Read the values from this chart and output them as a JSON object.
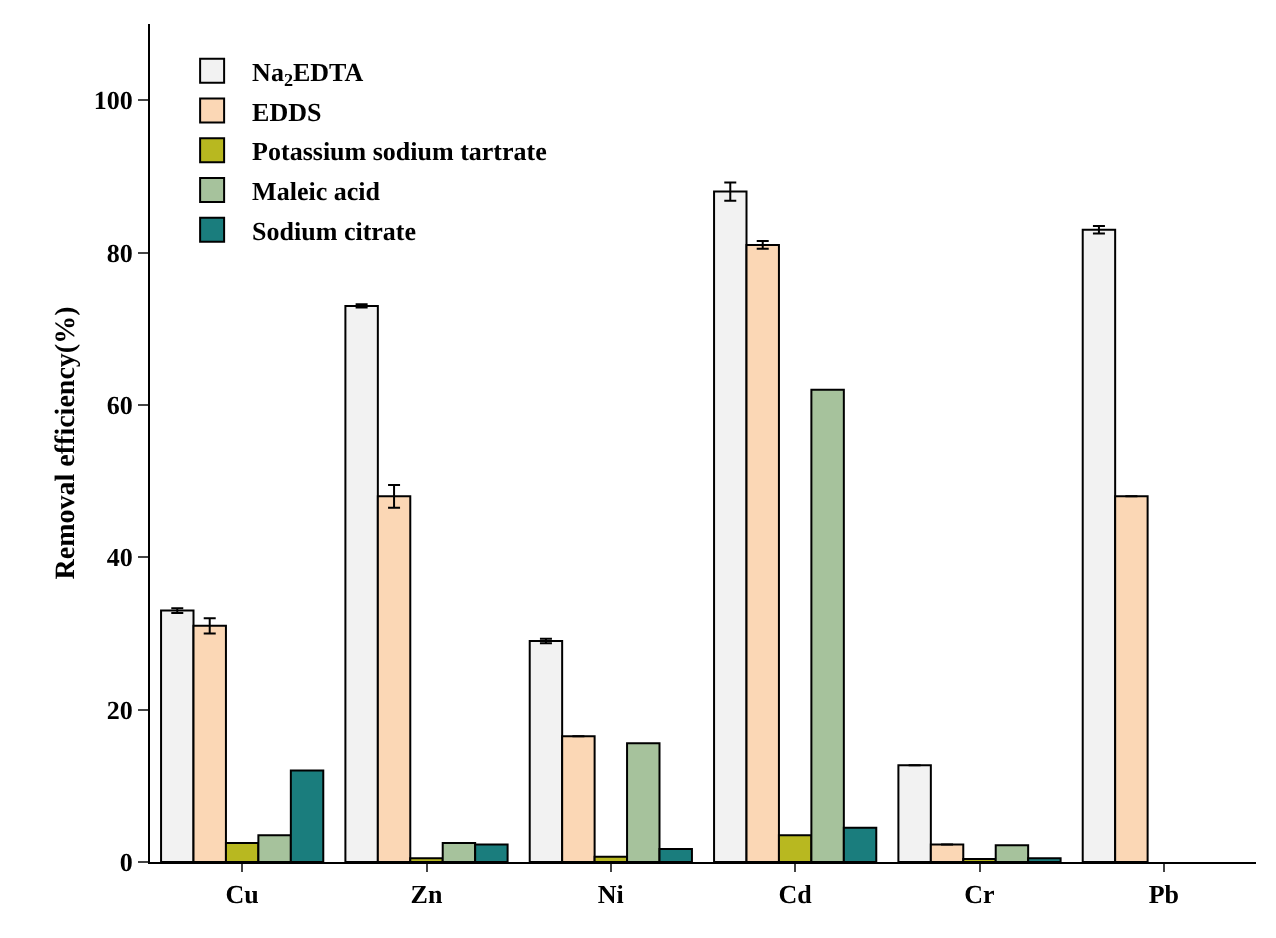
{
  "chart_data": {
    "type": "bar",
    "ylabel": "Removal efficiency(%)",
    "categories": [
      "Cu",
      "Zn",
      "Ni",
      "Cd",
      "Cr",
      "Pb"
    ],
    "series": [
      {
        "name": "Na$_{2}$EDTA",
        "color": "#f2f2f2",
        "values": [
          33,
          73,
          29,
          88,
          12.7,
          83
        ],
        "errors": [
          0.3,
          0.2,
          0.3,
          1.2,
          null,
          0.5
        ]
      },
      {
        "name": "EDDS",
        "color": "#fbd7b5",
        "values": [
          31,
          48,
          16.5,
          81,
          2.3,
          48
        ],
        "errors": [
          1,
          1.5,
          null,
          0.5,
          null,
          null
        ]
      },
      {
        "name": "Potassium sodium tartrate",
        "color": "#b8b820",
        "values": [
          2.5,
          0.5,
          0.7,
          3.5,
          0.4,
          null
        ]
      },
      {
        "name": "Maleic acid",
        "color": "#a6c29c",
        "values": [
          3.5,
          2.5,
          15.6,
          62,
          2.2,
          null
        ]
      },
      {
        "name": "Sodium citrate",
        "color": "#1a7d7d",
        "values": [
          12,
          2.3,
          1.7,
          4.5,
          0.5,
          null
        ]
      }
    ],
    "ylim": [
      0,
      110
    ],
    "yticks": [
      0,
      20,
      40,
      60,
      80,
      100
    ],
    "legend": "top left",
    "grid": false
  }
}
